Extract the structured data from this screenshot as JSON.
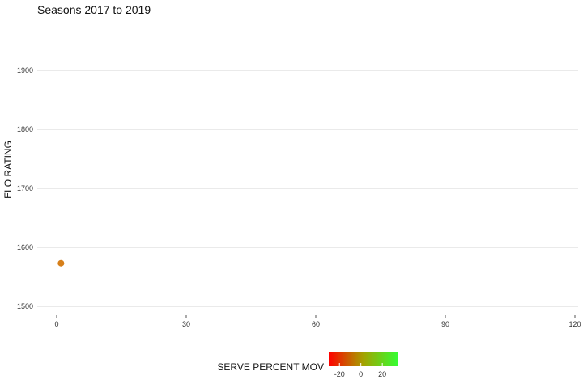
{
  "chart_data": {
    "type": "scatter",
    "title": "Seasons 2017 to 2019",
    "xlabel": "",
    "ylabel": "ELO RATING",
    "xlim": [
      -3,
      120
    ],
    "ylim": [
      1490,
      1960
    ],
    "x_ticks": [
      0,
      30,
      60,
      90,
      120
    ],
    "y_ticks": [
      1500,
      1600,
      1700,
      1800,
      1900
    ],
    "grid": "horizontal",
    "points": [
      {
        "x": 1,
        "y": 1573,
        "color": "#d67f1a"
      }
    ],
    "legend": {
      "title": "SERVE PERCENT MOV",
      "placement": "bottom",
      "type": "colorbar",
      "colors": [
        "#ff0000",
        "#a3a300",
        "#33ff33"
      ],
      "range": [
        -30,
        35
      ],
      "ticks": [
        -20,
        0,
        20
      ]
    }
  }
}
